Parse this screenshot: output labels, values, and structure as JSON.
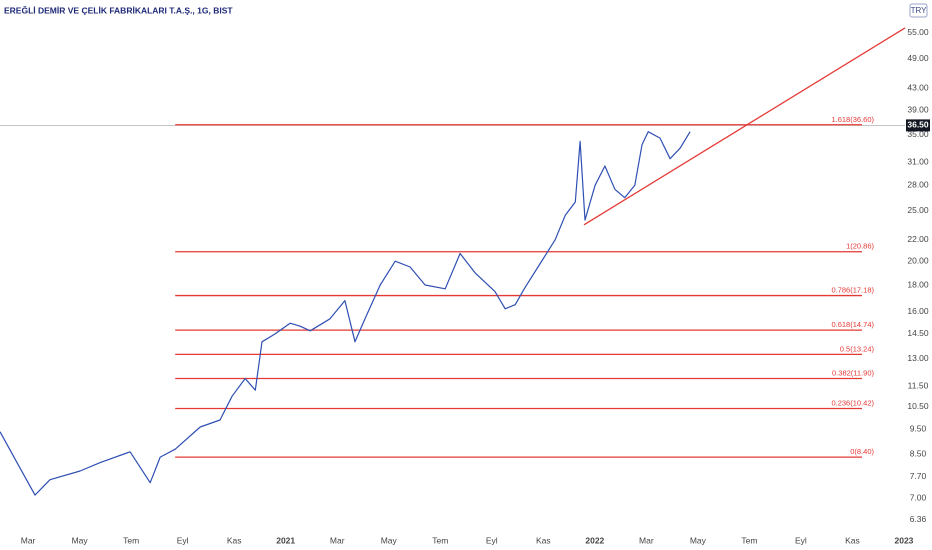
{
  "chart_data": {
    "type": "line",
    "title": "EREĞLİ DEMİR VE ÇELİK FABRİKALARI T.A.Ş., 1G, BIST",
    "currency": "TRY",
    "log_scale": true,
    "xlim": [
      0.91,
      36.04
    ],
    "ylim": [
      6.03,
      63.6
    ],
    "xticks": [
      {
        "value": 2,
        "label": "Mar"
      },
      {
        "value": 4,
        "label": "May"
      },
      {
        "value": 6,
        "label": "Tem"
      },
      {
        "value": 8,
        "label": "Eyl"
      },
      {
        "value": 10,
        "label": "Kas"
      },
      {
        "value": 12,
        "label": "2021"
      },
      {
        "value": 14,
        "label": "Mar"
      },
      {
        "value": 16,
        "label": "May"
      },
      {
        "value": 18,
        "label": "Tem"
      },
      {
        "value": 20,
        "label": "Eyl"
      },
      {
        "value": 22,
        "label": "Kas"
      },
      {
        "value": 24,
        "label": "2022"
      },
      {
        "value": 26,
        "label": "Mar"
      },
      {
        "value": 28,
        "label": "May"
      },
      {
        "value": 30,
        "label": "Tem"
      },
      {
        "value": 32,
        "label": "Eyl"
      },
      {
        "value": 34,
        "label": "Kas"
      },
      {
        "value": 36,
        "label": "2023"
      }
    ],
    "yticks": [
      {
        "value": 55,
        "label": "55.00"
      },
      {
        "value": 49,
        "label": "49.00"
      },
      {
        "value": 43,
        "label": "43.00"
      },
      {
        "value": 39,
        "label": "39.00"
      },
      {
        "value": 35,
        "label": "35.00"
      },
      {
        "value": 31,
        "label": "31.00"
      },
      {
        "value": 28,
        "label": "28.00"
      },
      {
        "value": 25,
        "label": "25.00"
      },
      {
        "value": 22,
        "label": "22.00"
      },
      {
        "value": 20,
        "label": "20.00"
      },
      {
        "value": 18,
        "label": "18.00"
      },
      {
        "value": 16,
        "label": "16.00"
      },
      {
        "value": 14.5,
        "label": "14.50"
      },
      {
        "value": 13,
        "label": "13.00"
      },
      {
        "value": 11.5,
        "label": "11.50"
      },
      {
        "value": 10.5,
        "label": "10.50"
      },
      {
        "value": 9.5,
        "label": "9.50"
      },
      {
        "value": 8.5,
        "label": "8.50"
      },
      {
        "value": 7.7,
        "label": "7.70"
      },
      {
        "value": 7,
        "label": "7.00"
      },
      {
        "value": 6.36,
        "label": "6.36"
      }
    ],
    "series": [
      {
        "color": "#2f4fb3",
        "x": [
          0.91,
          1.69,
          2.27,
          2.85,
          4.02,
          4.8,
          5.96,
          6.74,
          7.13,
          7.71,
          8.68,
          9.45,
          9.92,
          10.43,
          10.82,
          11.08,
          11.59,
          12.17,
          12.56,
          12.95,
          13.72,
          14.3,
          14.69,
          15.08,
          15.67,
          16.25,
          16.83,
          17.41,
          18.19,
          18.77,
          19.35,
          20.12,
          20.52,
          20.91,
          21.29,
          21.88,
          22.46,
          22.85,
          23.24,
          23.43,
          23.62,
          24.01,
          24.39,
          24.78,
          25.16,
          25.55,
          25.83,
          26.07,
          26.53,
          26.92,
          27.31,
          27.7
        ],
        "values": [
          9.4,
          8.0,
          7.1,
          7.6,
          7.9,
          8.2,
          8.6,
          7.5,
          8.4,
          8.7,
          9.6,
          9.9,
          11.0,
          11.9,
          11.3,
          14.0,
          14.5,
          15.2,
          15.0,
          14.7,
          15.5,
          16.8,
          14.0,
          15.5,
          18.0,
          20.0,
          19.5,
          18.0,
          17.7,
          20.7,
          19.0,
          17.5,
          16.2,
          16.5,
          17.8,
          19.8,
          22.0,
          24.5,
          26.0,
          34.0,
          24.0,
          28.0,
          30.5,
          27.5,
          26.5,
          28.0,
          33.5,
          35.5,
          34.5,
          31.5,
          33.0,
          35.5
        ]
      }
    ],
    "fib_start": 7.71,
    "fib_color": "#e53935",
    "fib_levels": [
      {
        "value": 36.6,
        "label": "1.618(36.60)"
      },
      {
        "value": 20.86,
        "label": "1(20.86)"
      },
      {
        "value": 17.18,
        "label": "0.786(17.18)"
      },
      {
        "value": 14.74,
        "label": "0.618(14.74)"
      },
      {
        "value": 13.24,
        "label": "0.5(13.24)"
      },
      {
        "value": 11.9,
        "label": "0.382(11.90)"
      },
      {
        "value": 10.42,
        "label": "0.236(10.42)"
      },
      {
        "value": 8.4,
        "label": "0(8.40)"
      }
    ],
    "trendline": {
      "color": "#e53935",
      "x": [
        23.58,
        36.04
      ],
      "values": [
        23.5,
        56.2
      ]
    },
    "last_price": {
      "value": 36.5,
      "label": "36.50"
    }
  }
}
